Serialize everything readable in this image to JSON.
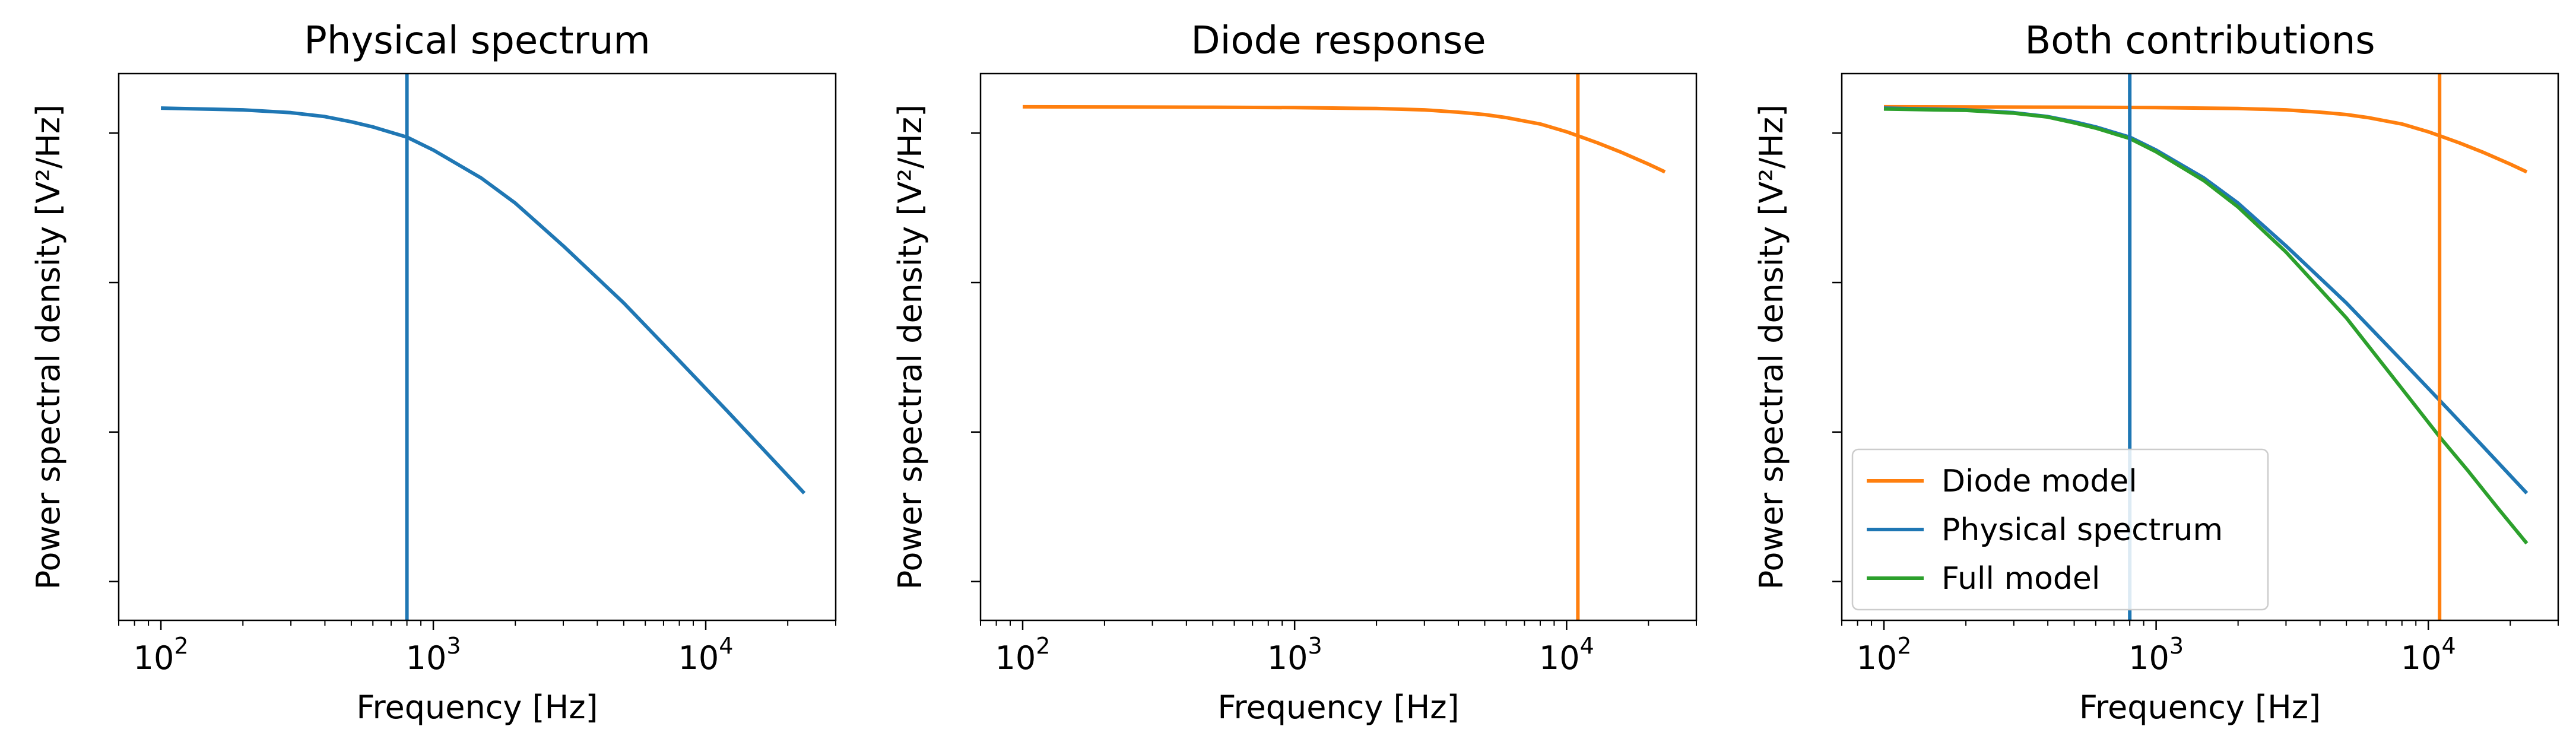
{
  "chart_data": [
    {
      "type": "line",
      "title": "Physical spectrum",
      "xlabel": "Frequency [Hz]",
      "ylabel": "Power spectral density [V²/Hz]",
      "xscale": "log",
      "yscale": "log",
      "xlim": [
        70,
        30000
      ],
      "ylim": [
        0.00055,
        2.5
      ],
      "xticks": [
        {
          "base": "10",
          "exp": "2"
        },
        {
          "base": "10",
          "exp": "3"
        },
        {
          "base": "10",
          "exp": "4"
        }
      ],
      "yticks_labels_shown": false,
      "grid": false,
      "legend": null,
      "vlines": [
        {
          "x": 800,
          "color": "#1f77b4"
        }
      ],
      "series": [
        {
          "color": "#1f77b4",
          "x": [
            100,
            200,
            300,
            400,
            500,
            600,
            800,
            1000,
            1500,
            2000,
            3000,
            5000,
            8000,
            12000,
            16000,
            23000
          ],
          "y": [
            1.47,
            1.43,
            1.37,
            1.29,
            1.19,
            1.1,
            0.94,
            0.77,
            0.5,
            0.34,
            0.176,
            0.073,
            0.03,
            0.0138,
            0.0079,
            0.0039
          ]
        }
      ]
    },
    {
      "type": "line",
      "title": "Diode response",
      "xlabel": "Frequency [Hz]",
      "ylabel": "Power spectral density [V²/Hz]",
      "xscale": "log",
      "yscale": "log",
      "xlim": [
        70,
        30000
      ],
      "ylim": [
        0.00055,
        2.5
      ],
      "xticks": [
        {
          "base": "10",
          "exp": "2"
        },
        {
          "base": "10",
          "exp": "3"
        },
        {
          "base": "10",
          "exp": "4"
        }
      ],
      "yticks_labels_shown": false,
      "grid": false,
      "legend": null,
      "vlines": [
        {
          "x": 11000,
          "color": "#ff7f0e"
        }
      ],
      "series": [
        {
          "color": "#ff7f0e",
          "x": [
            100,
            500,
            1000,
            2000,
            3000,
            4000,
            5000,
            6000,
            8000,
            10000,
            11000,
            13000,
            16000,
            20000,
            23000
          ],
          "y": [
            1.5,
            1.49,
            1.48,
            1.46,
            1.43,
            1.38,
            1.33,
            1.27,
            1.15,
            1.02,
            0.96,
            0.86,
            0.74,
            0.62,
            0.55
          ]
        }
      ]
    },
    {
      "type": "line",
      "title": "Both contributions",
      "xlabel": "Frequency [Hz]",
      "ylabel": "Power spectral density [V²/Hz]",
      "xscale": "log",
      "yscale": "log",
      "xlim": [
        70,
        30000
      ],
      "ylim": [
        0.00055,
        2.5
      ],
      "xticks": [
        {
          "base": "10",
          "exp": "2"
        },
        {
          "base": "10",
          "exp": "3"
        },
        {
          "base": "10",
          "exp": "4"
        }
      ],
      "yticks_labels_shown": false,
      "grid": false,
      "legend": "lower-left",
      "vlines": [
        {
          "x": 800,
          "color": "#1f77b4"
        },
        {
          "x": 11000,
          "color": "#ff7f0e"
        }
      ],
      "series": [
        {
          "name": "Diode model",
          "color": "#ff7f0e",
          "x": [
            100,
            500,
            1000,
            2000,
            3000,
            4000,
            5000,
            6000,
            8000,
            10000,
            11000,
            13000,
            16000,
            20000,
            23000
          ],
          "y": [
            1.5,
            1.49,
            1.48,
            1.46,
            1.43,
            1.38,
            1.33,
            1.27,
            1.15,
            1.02,
            0.96,
            0.86,
            0.74,
            0.62,
            0.55
          ]
        },
        {
          "name": "Physical spectrum",
          "color": "#1f77b4",
          "x": [
            100,
            200,
            300,
            400,
            500,
            600,
            800,
            1000,
            1500,
            2000,
            3000,
            5000,
            8000,
            12000,
            16000,
            23000
          ],
          "y": [
            1.47,
            1.43,
            1.37,
            1.29,
            1.19,
            1.1,
            0.94,
            0.77,
            0.5,
            0.34,
            0.176,
            0.073,
            0.03,
            0.0138,
            0.0079,
            0.0039
          ]
        },
        {
          "name": "Full model",
          "color": "#2ca02c",
          "x": [
            100,
            200,
            300,
            400,
            500,
            600,
            800,
            1000,
            1500,
            2000,
            3000,
            5000,
            8000,
            11000,
            14000,
            18000,
            23000
          ],
          "y": [
            1.45,
            1.42,
            1.36,
            1.28,
            1.17,
            1.08,
            0.92,
            0.75,
            0.48,
            0.32,
            0.16,
            0.058,
            0.0195,
            0.0093,
            0.0055,
            0.0031,
            0.0018
          ]
        }
      ]
    }
  ]
}
